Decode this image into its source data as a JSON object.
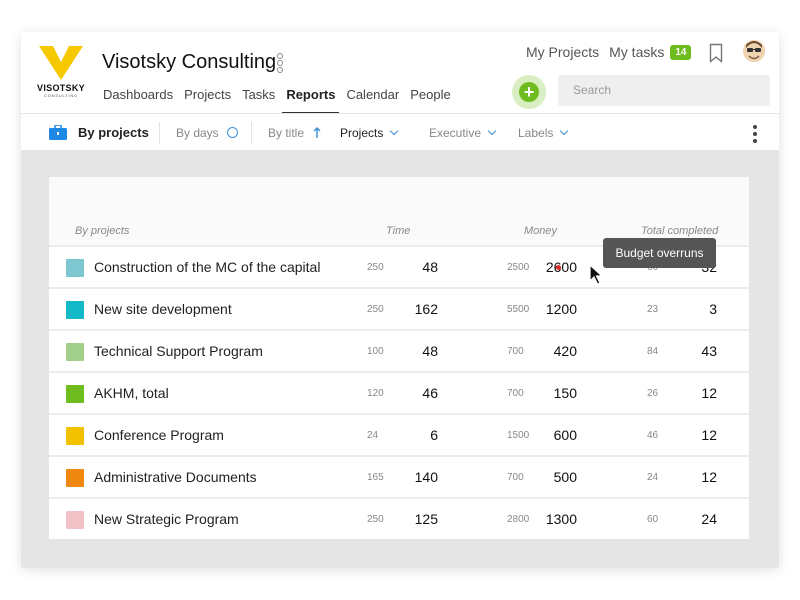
{
  "brand": {
    "logo_text": "VISOTSKY",
    "logo_subtext": "CONSULTING",
    "company_name": "Visotsky Consulting",
    "accent_color": "#f5c800",
    "green_color": "#6ebc1e"
  },
  "nav": {
    "items": [
      {
        "label": "Dashboards",
        "active": false
      },
      {
        "label": "Projects",
        "active": false
      },
      {
        "label": "Tasks",
        "active": false
      },
      {
        "label": "Reports",
        "active": true
      },
      {
        "label": "Calendar",
        "active": false
      },
      {
        "label": "People",
        "active": false
      }
    ]
  },
  "top": {
    "my_projects": "My Projects",
    "my_tasks": "My tasks",
    "tasks_count": "14",
    "search_placeholder": "Search"
  },
  "toolbar": {
    "by_projects": "By projects",
    "by_days": "By days",
    "by_title": "By title",
    "projects": "Projects",
    "executive": "Executive",
    "labels": "Labels"
  },
  "table": {
    "headers": {
      "projects": "By projects",
      "time": "Time",
      "money": "Money",
      "total": "Total completed"
    },
    "rows": [
      {
        "name": "Construction of the MC of the capital",
        "color": "#7ec6d0",
        "time_plan": "250",
        "time": "48",
        "money_plan": "2500",
        "money": "2600",
        "total_plan": "60",
        "total": "32"
      },
      {
        "name": "New site development",
        "color": "#13b9c6",
        "time_plan": "250",
        "time": "162",
        "money_plan": "5500",
        "money": "1200",
        "total_plan": "23",
        "total": "3"
      },
      {
        "name": "Technical Support Program",
        "color": "#a3cf8d",
        "time_plan": "100",
        "time": "48",
        "money_plan": "700",
        "money": "420",
        "total_plan": "84",
        "total": "43"
      },
      {
        "name": "AKHM, total",
        "color": "#6ebc1e",
        "time_plan": "120",
        "time": "46",
        "money_plan": "700",
        "money": "150",
        "total_plan": "26",
        "total": "12"
      },
      {
        "name": "Conference Program",
        "color": "#f2c200",
        "time_plan": "24",
        "time": "6",
        "money_plan": "1500",
        "money": "600",
        "total_plan": "46",
        "total": "12"
      },
      {
        "name": "Administrative Documents",
        "color": "#f0870e",
        "time_plan": "165",
        "time": "140",
        "money_plan": "700",
        "money": "500",
        "total_plan": "24",
        "total": "12"
      },
      {
        "name": "New Strategic Program",
        "color": "#f1c2c6",
        "time_plan": "250",
        "time": "125",
        "money_plan": "2800",
        "money": "1300",
        "total_plan": "60",
        "total": "24"
      }
    ]
  },
  "tooltip": {
    "text": "Budget overruns"
  }
}
